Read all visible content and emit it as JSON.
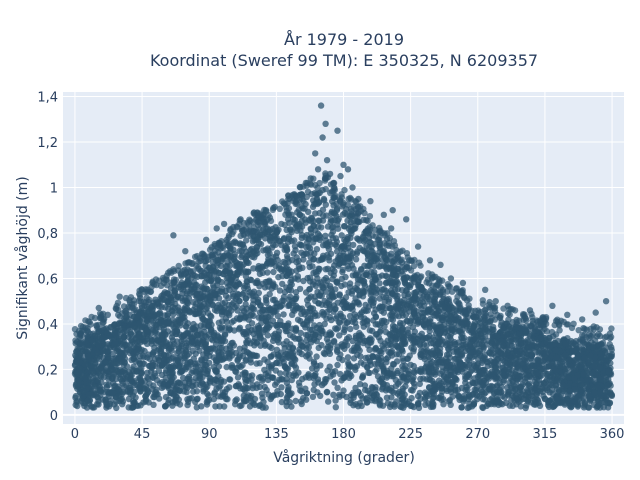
{
  "chart_data": {
    "type": "scatter",
    "title": "År 1979 - 2019",
    "subtitle": "Koordinat (Sweref 99 TM): E 350325, N 6209357",
    "xlabel": "Vågriktning (grader)",
    "ylabel": "Signifikant våghöjd (m)",
    "xlim": [
      -8,
      368
    ],
    "ylim": [
      -0.04,
      1.42
    ],
    "xticks": [
      0,
      45,
      90,
      135,
      180,
      225,
      270,
      315,
      360
    ],
    "xtick_labels": [
      "0",
      "45",
      "90",
      "135",
      "180",
      "225",
      "270",
      "315",
      "360"
    ],
    "yticks": [
      0,
      0.2,
      0.4,
      0.6,
      0.8,
      1.0,
      1.2,
      1.4
    ],
    "ytick_labels": [
      "0",
      "0,2",
      "0,4",
      "0,6",
      "0,8",
      "1",
      "1,2",
      "1,4"
    ],
    "grid": true,
    "legend": "none",
    "marker_color": "#2e5570",
    "background_color": "#e5ecf6",
    "envelope": {
      "x": [
        0,
        20,
        45,
        70,
        90,
        110,
        135,
        150,
        165,
        180,
        200,
        225,
        250,
        270,
        300,
        330,
        360
      ],
      "y_max": [
        0.32,
        0.38,
        0.48,
        0.58,
        0.65,
        0.78,
        0.85,
        0.92,
        1.0,
        0.92,
        0.78,
        0.62,
        0.5,
        0.44,
        0.38,
        0.33,
        0.3
      ],
      "y_min": [
        0.03,
        0.03,
        0.03,
        0.03,
        0.03,
        0.03,
        0.03,
        0.03,
        0.03,
        0.03,
        0.03,
        0.03,
        0.03,
        0.03,
        0.03,
        0.03,
        0.03
      ]
    },
    "outliers": [
      {
        "x": 165,
        "y": 1.36
      },
      {
        "x": 168,
        "y": 1.28
      },
      {
        "x": 176,
        "y": 1.25
      },
      {
        "x": 166,
        "y": 1.22
      },
      {
        "x": 161,
        "y": 1.15
      },
      {
        "x": 169,
        "y": 1.12
      },
      {
        "x": 180,
        "y": 1.1
      },
      {
        "x": 183,
        "y": 1.08
      },
      {
        "x": 163,
        "y": 1.08
      },
      {
        "x": 171,
        "y": 1.06
      },
      {
        "x": 178,
        "y": 1.05
      },
      {
        "x": 158,
        "y": 1.04
      },
      {
        "x": 186,
        "y": 1.0
      },
      {
        "x": 152,
        "y": 0.97
      },
      {
        "x": 190,
        "y": 0.95
      },
      {
        "x": 140,
        "y": 0.93
      },
      {
        "x": 133,
        "y": 0.91
      },
      {
        "x": 120,
        "y": 0.89
      },
      {
        "x": 111,
        "y": 0.86
      },
      {
        "x": 95,
        "y": 0.82
      },
      {
        "x": 66,
        "y": 0.79
      },
      {
        "x": 88,
        "y": 0.77
      },
      {
        "x": 213,
        "y": 0.9
      },
      {
        "x": 222,
        "y": 0.86
      },
      {
        "x": 212,
        "y": 0.82
      },
      {
        "x": 230,
        "y": 0.74
      },
      {
        "x": 238,
        "y": 0.68
      },
      {
        "x": 245,
        "y": 0.66
      },
      {
        "x": 252,
        "y": 0.6
      },
      {
        "x": 260,
        "y": 0.58
      },
      {
        "x": 275,
        "y": 0.55
      },
      {
        "x": 282,
        "y": 0.5
      },
      {
        "x": 290,
        "y": 0.48
      },
      {
        "x": 305,
        "y": 0.46
      },
      {
        "x": 320,
        "y": 0.48
      },
      {
        "x": 330,
        "y": 0.44
      },
      {
        "x": 349,
        "y": 0.45
      },
      {
        "x": 356,
        "y": 0.5
      },
      {
        "x": 340,
        "y": 0.42
      },
      {
        "x": 47,
        "y": 0.54
      },
      {
        "x": 52,
        "y": 0.58
      },
      {
        "x": 30,
        "y": 0.52
      },
      {
        "x": 16,
        "y": 0.47
      },
      {
        "x": 5,
        "y": 0.37
      },
      {
        "x": 22,
        "y": 0.44
      },
      {
        "x": 74,
        "y": 0.72
      },
      {
        "x": 100,
        "y": 0.84
      },
      {
        "x": 128,
        "y": 0.9
      },
      {
        "x": 198,
        "y": 0.94
      },
      {
        "x": 207,
        "y": 0.88
      }
    ]
  }
}
